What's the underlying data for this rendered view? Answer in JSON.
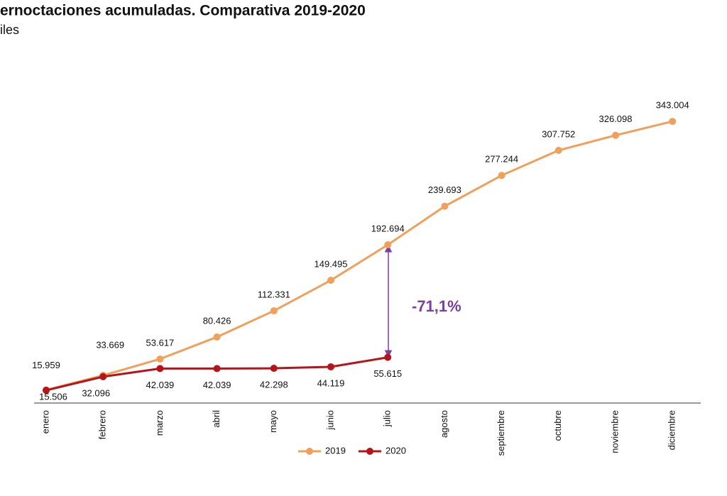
{
  "chart_data": {
    "type": "line",
    "title": "ernoctaciones acumuladas. Comparativa 2019-2020",
    "subtitle": "iles",
    "annotation": "-71,1%",
    "categories": [
      "enero",
      "febrero",
      "marzo",
      "abril",
      "mayo",
      "junio",
      "julio",
      "agosto",
      "septiembre",
      "octubre",
      "noviembre",
      "diciembre"
    ],
    "ylim": [
      0,
      350000
    ],
    "legend": "bottom",
    "series": [
      {
        "name": "2019",
        "color": "#f0a05a",
        "values": [
          15959,
          33669,
          53617,
          80426,
          112331,
          149495,
          192694,
          239693,
          277244,
          307752,
          326098,
          343004
        ],
        "value_labels": [
          "15.959",
          "33.669",
          "53.617",
          "80.426",
          "112.331",
          "149.495",
          "192.694",
          "239.693",
          "277.244",
          "307.752",
          "326.098",
          "343.004"
        ]
      },
      {
        "name": "2020",
        "color": "#b5141b",
        "values": [
          15506,
          32096,
          42039,
          42039,
          42298,
          44119,
          55615,
          null,
          null,
          null,
          null,
          null
        ],
        "value_labels": [
          "15.506",
          "32.096",
          "42.039",
          "42.039",
          "42.298",
          "44.119",
          "55.615",
          null,
          null,
          null,
          null,
          null
        ]
      }
    ]
  }
}
